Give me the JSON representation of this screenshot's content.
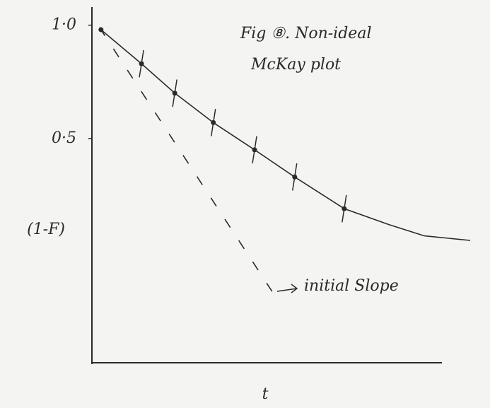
{
  "chart_data": {
    "type": "line",
    "title": [
      "Fig ⑧. Non-ideal",
      "McKay plot"
    ],
    "ylabel": "(1-F)",
    "xlabel": "t",
    "annotation": "initial Slope",
    "xlim": [
      0,
      10
    ],
    "ylim": [
      -0.49,
      1.08
    ],
    "yticks": [
      {
        "value": 1.0,
        "label": "1·0"
      },
      {
        "value": 0.5,
        "label": "0·5"
      }
    ],
    "series": [
      {
        "style": "points",
        "color": "#2a2a2a",
        "x": [
          0.24,
          1.31,
          2.19,
          3.21,
          4.3,
          5.36,
          6.67
        ],
        "values": [
          0.98,
          0.83,
          0.7,
          0.57,
          0.45,
          0.33,
          0.19
        ],
        "errors": [
          null,
          0.06,
          0.06,
          0.06,
          0.06,
          0.06,
          0.06
        ]
      },
      {
        "style": "curve",
        "color": "#2a2a2a",
        "x": [
          0.24,
          1.31,
          2.19,
          3.21,
          4.3,
          5.36,
          6.67,
          7.85,
          8.79,
          10
        ],
        "values": [
          0.98,
          0.83,
          0.7,
          0.57,
          0.45,
          0.33,
          0.19,
          0.12,
          0.07,
          0.05
        ]
      },
      {
        "style": "dashed",
        "color": "#2a2a2a",
        "x": [
          0.2,
          4.86
        ],
        "values": [
          0.99,
          -0.2
        ]
      }
    ]
  }
}
